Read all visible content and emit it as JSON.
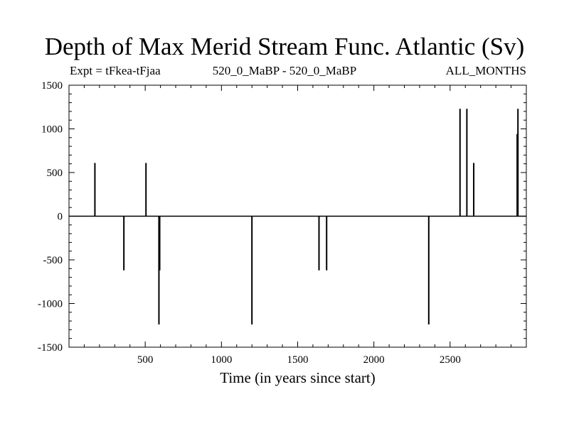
{
  "chart_data": {
    "type": "bar",
    "title": "Depth of Max Merid Stream Func. Atlantic (Sv)",
    "subtitle_left": "Expt = tFkea-tFjaa",
    "subtitle_center": "520_0_MaBP - 520_0_MaBP",
    "subtitle_right": "ALL_MONTHS",
    "xlabel": "Time (in years since start)",
    "ylabel": "",
    "xlim": [
      0,
      3000
    ],
    "ylim": [
      -1500,
      1500
    ],
    "xticks": [
      500,
      1000,
      1500,
      2000,
      2500
    ],
    "yticks": [
      -1500,
      -1000,
      -500,
      0,
      500,
      1000,
      1500
    ],
    "grid": false,
    "x": [
      170,
      360,
      505,
      590,
      595,
      1200,
      1640,
      1690,
      2360,
      2565,
      2610,
      2655,
      2940,
      2945
    ],
    "values": [
      610,
      -620,
      610,
      -1240,
      -620,
      -1240,
      -620,
      -620,
      -1240,
      1230,
      1230,
      610,
      940,
      1230
    ]
  }
}
